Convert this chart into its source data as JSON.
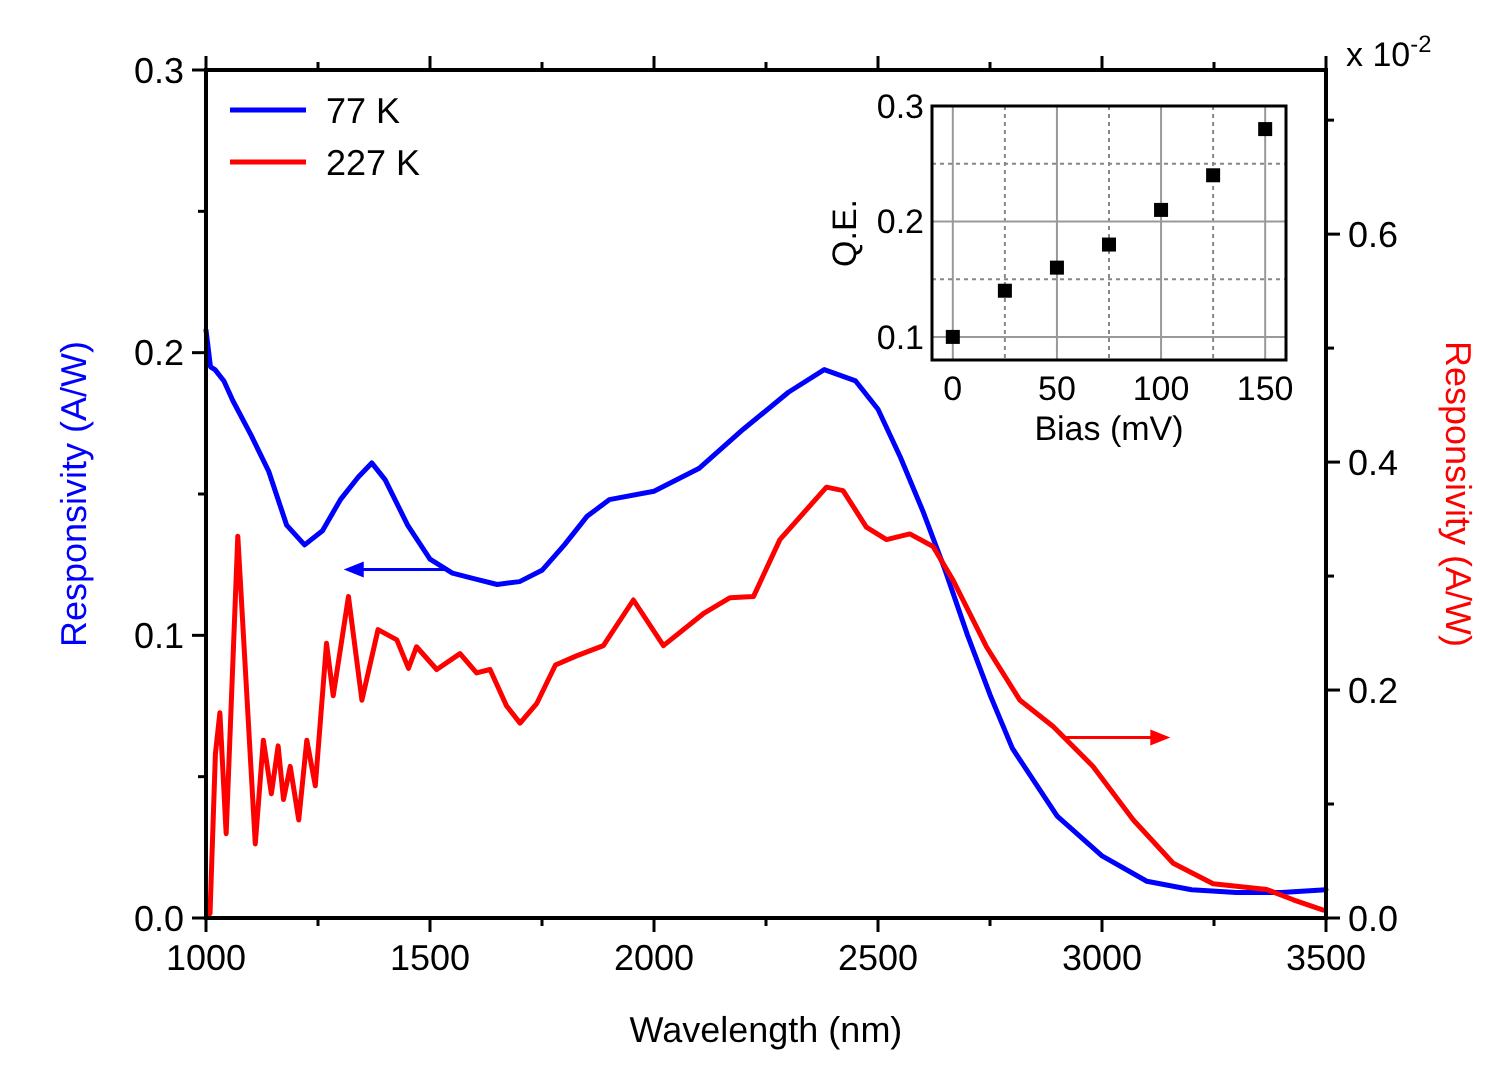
{
  "chart_data": [
    {
      "type": "line",
      "xlabel": "Wavelength (nm)",
      "ylabel": "Responsivity (A/W)",
      "y2label": "Responsivity (A/W)",
      "xlim": [
        1000,
        3500
      ],
      "xticks": [
        1000,
        {
          "value": 1250,
          "label": null
        },
        1500,
        {
          "value": 1750,
          "label": null
        },
        2000,
        {
          "value": 2250,
          "label": null
        },
        2500,
        {
          "value": 2750,
          "label": null
        },
        3000,
        {
          "value": 3250,
          "label": null
        },
        3500
      ],
      "ylim": [
        0,
        0.3
      ],
      "yticks": [
        {
          "value": 0,
          "label": "0.0"
        },
        {
          "value": 0.05,
          "label": null
        },
        0.1,
        {
          "value": 0.15,
          "label": null
        },
        0.2,
        {
          "value": 0.25,
          "label": null
        },
        0.3
      ],
      "y2lim": [
        0,
        0.744
      ],
      "y2ticks": [
        {
          "value": 0,
          "label": "0.0"
        },
        {
          "value": 0.1,
          "label": null
        },
        0.2,
        {
          "value": 0.3,
          "label": null
        },
        0.4,
        {
          "value": 0.5,
          "label": null
        },
        0.6,
        {
          "value": 0.7,
          "label": null
        }
      ],
      "annotations": [
        "x 10$^{-2}$"
      ],
      "legend": "top left",
      "line_style": "solid",
      "marker": "none",
      "grid": false,
      "series": [
        {
          "name": "77 K",
          "color": "#0000ff",
          "axis": "y",
          "x": [
            1000,
            1010,
            1020,
            1040,
            1060,
            1100,
            1140,
            1180,
            1220,
            1260,
            1300,
            1340,
            1370,
            1400,
            1450,
            1500,
            1550,
            1600,
            1650,
            1700,
            1750,
            1800,
            1850,
            1900,
            2000,
            2100,
            2200,
            2300,
            2380,
            2450,
            2500,
            2550,
            2600,
            2650,
            2700,
            2750,
            2800,
            2900,
            3000,
            3100,
            3200,
            3300,
            3400,
            3500
          ],
          "values": [
            0.208,
            0.195,
            0.194,
            0.19,
            0.183,
            0.171,
            0.158,
            0.139,
            0.132,
            0.137,
            0.148,
            0.156,
            0.161,
            0.155,
            0.139,
            0.127,
            0.122,
            0.12,
            0.118,
            0.119,
            0.123,
            0.132,
            0.142,
            0.148,
            0.151,
            0.159,
            0.173,
            0.186,
            0.194,
            0.19,
            0.18,
            0.163,
            0.144,
            0.123,
            0.1,
            0.079,
            0.06,
            0.036,
            0.022,
            0.013,
            0.01,
            0.009,
            0.009,
            0.01
          ]
        },
        {
          "name": "227 K",
          "color": "#ff0000",
          "axis": "y2",
          "x": [
            1000,
            1009,
            1021,
            1031,
            1045,
            1071,
            1110,
            1128,
            1146,
            1161,
            1173,
            1188,
            1207,
            1225,
            1244,
            1269,
            1284,
            1318,
            1348,
            1384,
            1426,
            1452,
            1470,
            1515,
            1567,
            1604,
            1634,
            1671,
            1701,
            1738,
            1780,
            1827,
            1887,
            1954,
            2021,
            2110,
            2170,
            2222,
            2281,
            2385,
            2422,
            2474,
            2519,
            2571,
            2623,
            2668,
            2742,
            2817,
            2891,
            2980,
            3070,
            3159,
            3248,
            3368,
            3427,
            3494
          ],
          "values": [
            0,
            0.004,
            0.144,
            0.18,
            0.074,
            0.335,
            0.065,
            0.156,
            0.109,
            0.151,
            0.104,
            0.133,
            0.086,
            0.156,
            0.116,
            0.241,
            0.195,
            0.282,
            0.191,
            0.253,
            0.244,
            0.219,
            0.238,
            0.218,
            0.232,
            0.215,
            0.218,
            0.186,
            0.171,
            0.188,
            0.222,
            0.23,
            0.239,
            0.279,
            0.239,
            0.267,
            0.281,
            0.282,
            0.332,
            0.378,
            0.375,
            0.343,
            0.332,
            0.337,
            0.326,
            0.296,
            0.238,
            0.191,
            0.168,
            0.133,
            0.086,
            0.048,
            0.03,
            0.025,
            0.016,
            0.007
          ]
        }
      ]
    },
    {
      "type": "scatter",
      "xlabel": "Bias (mV)",
      "ylabel": "Q.E.",
      "xlim": [
        -10,
        160
      ],
      "xticks": [
        0,
        {
          "value": 25,
          "label": null
        },
        50,
        {
          "value": 75,
          "label": null
        },
        100,
        {
          "value": 125,
          "label": null
        },
        150
      ],
      "ylim": [
        0.08,
        0.3
      ],
      "yticks": [
        0.1,
        {
          "value": 0.15,
          "label": null
        },
        0.2,
        {
          "value": 0.25,
          "label": null
        },
        0.3
      ],
      "grid": true,
      "marker": "square",
      "series": [
        {
          "color": "#000000",
          "x": [
            0,
            25,
            50,
            75,
            100,
            125,
            150
          ],
          "values": [
            0.1,
            0.14,
            0.16,
            0.18,
            0.21,
            0.24,
            0.28
          ]
        }
      ]
    }
  ]
}
